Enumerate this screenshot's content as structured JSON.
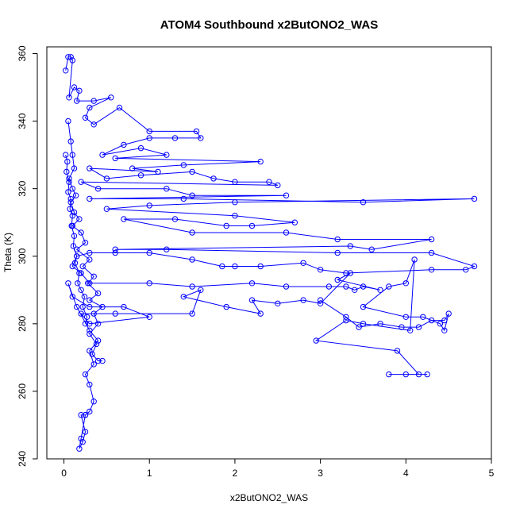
{
  "chart_data": {
    "type": "line",
    "title": "ATOM4 Southbound x2ButONO2_WAS",
    "xlabel": "x2ButONO2_WAS",
    "ylabel": "Theta (K)",
    "xlim": [
      -0.2,
      5.0
    ],
    "ylim": [
      240,
      362
    ],
    "xticks": [
      0,
      1,
      2,
      3,
      4,
      5
    ],
    "yticks": [
      240,
      260,
      280,
      300,
      320,
      340,
      360
    ],
    "grid": false,
    "legend": "none",
    "series_color": "#0000ff",
    "marker": "open-circle",
    "series": [
      {
        "points": [
          [
            0.02,
            355
          ],
          [
            0.05,
            359
          ],
          [
            0.08,
            359
          ],
          [
            0.1,
            358
          ],
          [
            0.06,
            347
          ],
          [
            0.12,
            350
          ],
          [
            0.18,
            349
          ],
          [
            0.15,
            346
          ],
          [
            0.35,
            346
          ],
          [
            0.55,
            347
          ],
          [
            0.3,
            344
          ],
          [
            0.25,
            341
          ],
          [
            0.35,
            339
          ],
          [
            0.65,
            344
          ],
          [
            1.0,
            337
          ],
          [
            1.55,
            337
          ],
          [
            1.6,
            335
          ],
          [
            1.3,
            335
          ],
          [
            1.0,
            335
          ],
          [
            0.7,
            333
          ],
          [
            0.45,
            330
          ],
          [
            0.9,
            332
          ],
          [
            1.2,
            330
          ],
          [
            0.6,
            329
          ],
          [
            2.3,
            328
          ],
          [
            1.4,
            327
          ],
          [
            0.8,
            326
          ],
          [
            1.1,
            325
          ],
          [
            0.3,
            326
          ],
          [
            0.5,
            323
          ],
          [
            0.9,
            324
          ],
          [
            1.5,
            325
          ],
          [
            1.75,
            323
          ],
          [
            2.0,
            322
          ],
          [
            2.4,
            322
          ],
          [
            2.5,
            321
          ],
          [
            0.2,
            322
          ],
          [
            0.4,
            320
          ],
          [
            1.2,
            320
          ],
          [
            1.5,
            318
          ],
          [
            2.6,
            318
          ],
          [
            0.3,
            317
          ],
          [
            1.4,
            317
          ],
          [
            3.5,
            316
          ],
          [
            4.8,
            317
          ],
          [
            2.0,
            316
          ],
          [
            1.0,
            315
          ],
          [
            0.5,
            314
          ],
          [
            2.0,
            312
          ],
          [
            2.7,
            310
          ],
          [
            2.2,
            309
          ],
          [
            1.9,
            309
          ],
          [
            1.3,
            311
          ],
          [
            0.7,
            311
          ],
          [
            1.5,
            307
          ],
          [
            2.6,
            307
          ],
          [
            3.2,
            305
          ],
          [
            4.3,
            305
          ],
          [
            3.6,
            302
          ],
          [
            3.35,
            303
          ],
          [
            0.6,
            302
          ],
          [
            1.2,
            302
          ],
          [
            3.2,
            301
          ],
          [
            4.3,
            301
          ],
          [
            4.8,
            297
          ],
          [
            4.7,
            296
          ],
          [
            4.3,
            296
          ],
          [
            3.3,
            295
          ],
          [
            3.0,
            296
          ],
          [
            2.8,
            298
          ],
          [
            2.3,
            297
          ],
          [
            2.0,
            297
          ],
          [
            1.85,
            297
          ],
          [
            1.5,
            299
          ],
          [
            1.0,
            301
          ],
          [
            0.6,
            301
          ],
          [
            0.3,
            301
          ],
          [
            0.15,
            300
          ],
          [
            0.1,
            297
          ],
          [
            0.2,
            295
          ],
          [
            0.3,
            292
          ],
          [
            1.0,
            292
          ],
          [
            1.5,
            291
          ],
          [
            2.2,
            292
          ],
          [
            2.6,
            291
          ],
          [
            3.1,
            291
          ],
          [
            3.3,
            291
          ],
          [
            3.4,
            290
          ],
          [
            3.5,
            291
          ],
          [
            3.7,
            290
          ],
          [
            3.2,
            293
          ],
          [
            3.35,
            295
          ],
          [
            3.0,
            286
          ],
          [
            2.8,
            287
          ],
          [
            2.5,
            286
          ],
          [
            2.2,
            287
          ],
          [
            2.3,
            283
          ],
          [
            1.9,
            285
          ],
          [
            1.4,
            288
          ],
          [
            1.6,
            290
          ],
          [
            1.5,
            283
          ],
          [
            0.6,
            283
          ],
          [
            0.2,
            283
          ],
          [
            0.3,
            280
          ],
          [
            1.0,
            282
          ],
          [
            0.7,
            285
          ],
          [
            0.3,
            285
          ],
          [
            0.1,
            288
          ],
          [
            0.05,
            292
          ],
          [
            0.15,
            285
          ],
          [
            0.3,
            278
          ],
          [
            0.4,
            275
          ],
          [
            0.3,
            272
          ],
          [
            0.35,
            268
          ],
          [
            0.25,
            265
          ],
          [
            0.3,
            262
          ],
          [
            0.35,
            257
          ],
          [
            0.3,
            254
          ],
          [
            0.25,
            253
          ],
          [
            0.2,
            253
          ],
          [
            0.25,
            248
          ],
          [
            0.22,
            245
          ],
          [
            0.18,
            243
          ],
          [
            0.2,
            246
          ],
          [
            0.25,
            253
          ]
        ]
      },
      {
        "points": [
          [
            3.0,
            287
          ],
          [
            3.3,
            282
          ],
          [
            3.45,
            279
          ],
          [
            3.7,
            280
          ],
          [
            3.95,
            279
          ],
          [
            4.15,
            279
          ],
          [
            4.3,
            281
          ],
          [
            4.45,
            281
          ],
          [
            4.5,
            283
          ],
          [
            4.45,
            278
          ],
          [
            4.4,
            280
          ],
          [
            4.2,
            282
          ],
          [
            4.0,
            282
          ],
          [
            3.5,
            285
          ],
          [
            3.8,
            291
          ],
          [
            4.0,
            292
          ],
          [
            4.1,
            299
          ],
          [
            4.05,
            278
          ],
          [
            3.5,
            280
          ],
          [
            3.3,
            281
          ],
          [
            2.95,
            275
          ],
          [
            3.9,
            272
          ],
          [
            4.15,
            265
          ],
          [
            4.25,
            265
          ],
          [
            4.0,
            265
          ],
          [
            3.8,
            265
          ]
        ]
      },
      {
        "points": [
          [
            0.05,
            340
          ],
          [
            0.08,
            334
          ],
          [
            0.1,
            330
          ],
          [
            0.12,
            326
          ],
          [
            0.06,
            323
          ],
          [
            0.1,
            320
          ],
          [
            0.14,
            318
          ],
          [
            0.08,
            316
          ],
          [
            0.12,
            313
          ],
          [
            0.18,
            311
          ],
          [
            0.1,
            309
          ],
          [
            0.2,
            307
          ],
          [
            0.25,
            304
          ],
          [
            0.15,
            302
          ],
          [
            0.3,
            299
          ],
          [
            0.22,
            297
          ],
          [
            0.35,
            294
          ],
          [
            0.28,
            292
          ],
          [
            0.4,
            289
          ],
          [
            0.3,
            287
          ],
          [
            0.45,
            285
          ],
          [
            0.35,
            283
          ],
          [
            0.4,
            280
          ],
          [
            0.3,
            277
          ],
          [
            0.38,
            274
          ],
          [
            0.33,
            271
          ],
          [
            0.4,
            269
          ],
          [
            0.45,
            269
          ]
        ]
      },
      {
        "points": [
          [
            0.02,
            330
          ],
          [
            0.04,
            328
          ],
          [
            0.03,
            325
          ],
          [
            0.06,
            322
          ],
          [
            0.05,
            319
          ],
          [
            0.08,
            317
          ],
          [
            0.07,
            314
          ],
          [
            0.1,
            312
          ],
          [
            0.09,
            309
          ],
          [
            0.12,
            306
          ],
          [
            0.11,
            303
          ],
          [
            0.15,
            300
          ],
          [
            0.13,
            298
          ],
          [
            0.18,
            295
          ],
          [
            0.16,
            292
          ],
          [
            0.2,
            290
          ],
          [
            0.24,
            288
          ],
          [
            0.22,
            285
          ],
          [
            0.27,
            282
          ],
          [
            0.25,
            280
          ]
        ]
      }
    ]
  }
}
